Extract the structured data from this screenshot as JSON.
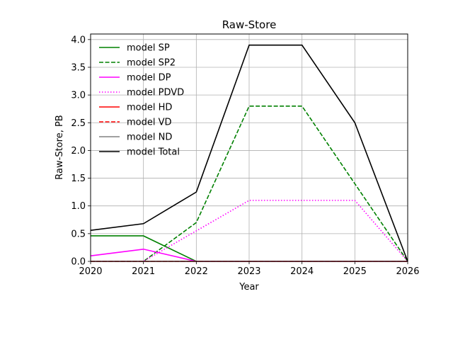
{
  "chart_data": {
    "type": "line",
    "title": "Raw-Store",
    "xlabel": "Year",
    "ylabel": "Raw-Store, PB",
    "x": [
      2020,
      2021,
      2022,
      2023,
      2024,
      2025,
      2026
    ],
    "xlim": [
      2020,
      2026
    ],
    "ylim": [
      0,
      4.1
    ],
    "xticks": [
      "2020",
      "2021",
      "2022",
      "2023",
      "2024",
      "2025",
      "2026"
    ],
    "yticks": [
      "0.0",
      "0.5",
      "1.0",
      "1.5",
      "2.0",
      "2.5",
      "3.0",
      "3.5",
      "4.0"
    ],
    "grid": true,
    "legend_position": "upper-left",
    "series": [
      {
        "name": "model SP",
        "color": "#008000",
        "dash": "solid",
        "values": [
          0.46,
          0.46,
          0.0,
          0.0,
          0.0,
          0.0,
          0.0
        ]
      },
      {
        "name": "model SP2",
        "color": "#008000",
        "dash": "dashed",
        "values": [
          0.0,
          0.0,
          0.7,
          2.8,
          2.8,
          1.4,
          0.0
        ]
      },
      {
        "name": "model DP",
        "color": "#ff00ff",
        "dash": "solid",
        "values": [
          0.1,
          0.22,
          0.0,
          0.0,
          0.0,
          0.0,
          0.0
        ]
      },
      {
        "name": "model PDVD",
        "color": "#ff00ff",
        "dash": "dotted",
        "values": [
          0.0,
          0.0,
          0.55,
          1.1,
          1.1,
          1.1,
          0.0
        ]
      },
      {
        "name": "model HD",
        "color": "#ff0000",
        "dash": "solid",
        "values": [
          0.0,
          0.0,
          0.0,
          0.0,
          0.0,
          0.0,
          0.0
        ]
      },
      {
        "name": "model VD",
        "color": "#ff0000",
        "dash": "dashed",
        "values": [
          0.0,
          0.0,
          0.0,
          0.0,
          0.0,
          0.0,
          0.0
        ]
      },
      {
        "name": "model ND",
        "color": "#808080",
        "dash": "solid",
        "values": [
          0.0,
          0.0,
          0.0,
          0.0,
          0.0,
          0.0,
          0.0
        ]
      },
      {
        "name": "model Total",
        "color": "#000000",
        "dash": "solid",
        "values": [
          0.56,
          0.68,
          1.25,
          3.9,
          3.9,
          2.5,
          0.0
        ]
      }
    ]
  }
}
